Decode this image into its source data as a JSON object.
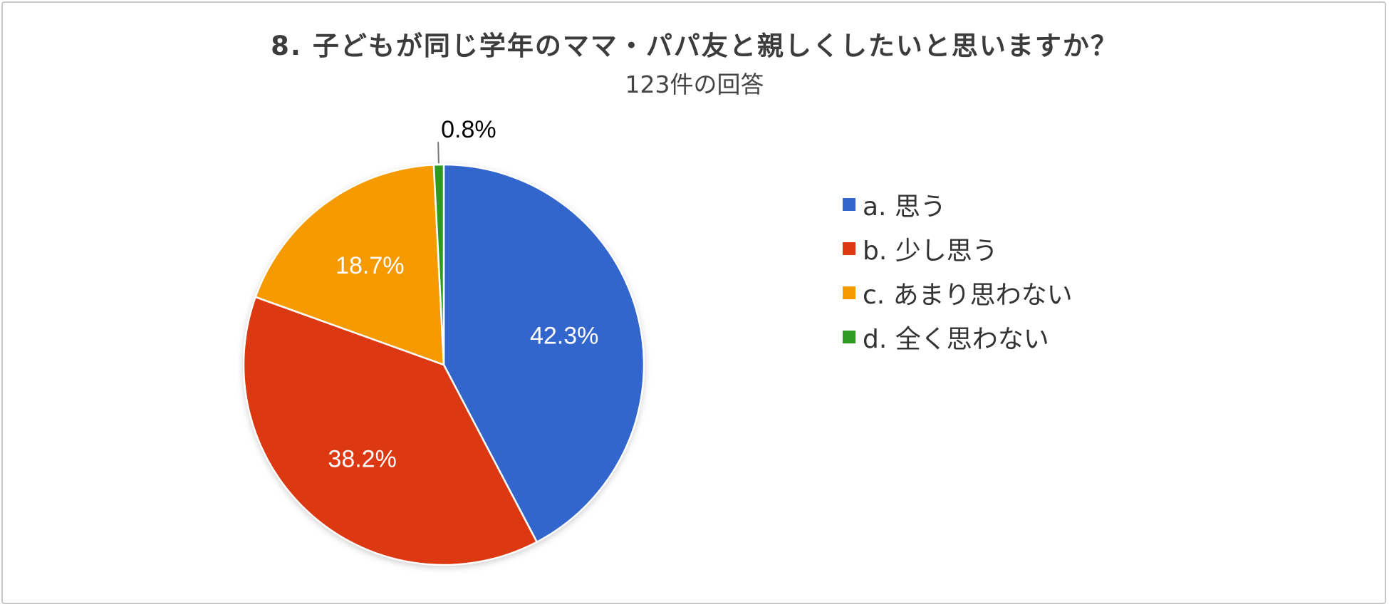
{
  "title": "8. 子どもが同じ学年のママ・パパ友と親しくしたいと思いますか？",
  "subtitle": "123件の回答",
  "chart_data": {
    "type": "pie",
    "categories": [
      "a. 思う",
      "b. 少し思う",
      "c. あまり思わない",
      "d. 全く思わない"
    ],
    "values": [
      42.3,
      38.2,
      18.7,
      0.8
    ],
    "value_labels": [
      "42.3%",
      "38.2%",
      "18.7%",
      "0.8%"
    ],
    "colors": [
      "#3366cc",
      "#dc3912",
      "#f59a00",
      "#2e9a1f"
    ],
    "legend_position": "right",
    "start_angle": "12 o'clock",
    "direction": "clockwise"
  }
}
